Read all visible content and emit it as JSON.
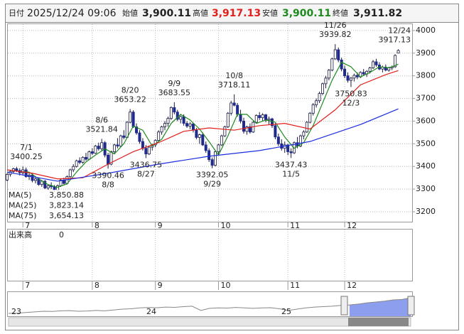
{
  "header": {
    "date_label": "日付",
    "date": "2025/12/24 09:06",
    "open_label": "始値",
    "open": "3,900.11",
    "high_label": "高値",
    "high": "3,917.13",
    "low_label": "安値",
    "low": "3,900.11",
    "close_label": "終値",
    "close": "3,911.82"
  },
  "chart_data": {
    "type": "candlestick",
    "ylim": [
      3156,
      4028
    ],
    "yticks": [
      3200,
      3300,
      3400,
      3500,
      3600,
      3700,
      3800,
      3900,
      4000
    ],
    "grid": true,
    "up_color": "#ffffff",
    "down_color": "#1f2a8c",
    "xticks": [
      {
        "value": 5,
        "label": "7"
      },
      {
        "value": 27,
        "label": "8"
      },
      {
        "value": 47,
        "label": "9"
      },
      {
        "value": 67,
        "label": "10"
      },
      {
        "value": 89,
        "label": "11"
      },
      {
        "value": 107,
        "label": "12"
      }
    ],
    "ohlc": [
      [
        3340,
        3370,
        3335,
        3365
      ],
      [
        3365,
        3385,
        3355,
        3378
      ],
      [
        3378,
        3395,
        3370,
        3390
      ],
      [
        3390,
        3398,
        3375,
        3382
      ],
      [
        3382,
        3392,
        3360,
        3372
      ],
      [
        3372,
        3400.25,
        3360,
        3385
      ],
      [
        3385,
        3395,
        3350,
        3355
      ],
      [
        3355,
        3370,
        3340,
        3362
      ],
      [
        3362,
        3368,
        3330,
        3338
      ],
      [
        3338,
        3350,
        3325,
        3345
      ],
      [
        3345,
        3352,
        3315,
        3320
      ],
      [
        3320,
        3340,
        3310,
        3335
      ],
      [
        3335,
        3340,
        3300,
        3305
      ],
      [
        3305,
        3320,
        3295,
        3315
      ],
      [
        3315,
        3330,
        3300,
        3310
      ],
      [
        3310,
        3318,
        3288,
        3295
      ],
      [
        3295,
        3320,
        3290,
        3315
      ],
      [
        3315,
        3345,
        3310,
        3340
      ],
      [
        3340,
        3350,
        3320,
        3325
      ],
      [
        3325,
        3360,
        3320,
        3355
      ],
      [
        3355,
        3390,
        3350,
        3385
      ],
      [
        3385,
        3410,
        3375,
        3400
      ],
      [
        3400,
        3430,
        3395,
        3425
      ],
      [
        3425,
        3440,
        3410,
        3418
      ],
      [
        3418,
        3445,
        3412,
        3440
      ],
      [
        3440,
        3460,
        3425,
        3432
      ],
      [
        3432,
        3470,
        3428,
        3465
      ],
      [
        3465,
        3480,
        3450,
        3458
      ],
      [
        3458,
        3495,
        3455,
        3490
      ],
      [
        3490,
        3505,
        3470,
        3478
      ],
      [
        3478,
        3521.84,
        3470,
        3505
      ],
      [
        3505,
        3512,
        3440,
        3450
      ],
      [
        3450,
        3460,
        3390.46,
        3410
      ],
      [
        3410,
        3470,
        3405,
        3465
      ],
      [
        3465,
        3500,
        3455,
        3495
      ],
      [
        3495,
        3525,
        3480,
        3490
      ],
      [
        3490,
        3540,
        3485,
        3535
      ],
      [
        3535,
        3560,
        3520,
        3528
      ],
      [
        3528,
        3600,
        3525,
        3595
      ],
      [
        3595,
        3653.22,
        3590,
        3640
      ],
      [
        3640,
        3648,
        3570,
        3575
      ],
      [
        3575,
        3590,
        3540,
        3548
      ],
      [
        3548,
        3560,
        3500,
        3510
      ],
      [
        3510,
        3525,
        3470,
        3480
      ],
      [
        3480,
        3495,
        3436.75,
        3455
      ],
      [
        3455,
        3490,
        3450,
        3485
      ],
      [
        3485,
        3500,
        3470,
        3495
      ],
      [
        3495,
        3520,
        3485,
        3515
      ],
      [
        3515,
        3560,
        3510,
        3552
      ],
      [
        3552,
        3580,
        3540,
        3575
      ],
      [
        3575,
        3600,
        3560,
        3590
      ],
      [
        3590,
        3620,
        3575,
        3612
      ],
      [
        3612,
        3665,
        3605,
        3660
      ],
      [
        3660,
        3683.55,
        3630,
        3640
      ],
      [
        3640,
        3650,
        3600,
        3608
      ],
      [
        3608,
        3625,
        3590,
        3620
      ],
      [
        3620,
        3630,
        3580,
        3590
      ],
      [
        3590,
        3600,
        3570,
        3578
      ],
      [
        3578,
        3595,
        3565,
        3588
      ],
      [
        3588,
        3592,
        3550,
        3560
      ],
      [
        3560,
        3570,
        3520,
        3528
      ],
      [
        3528,
        3545,
        3500,
        3540
      ],
      [
        3540,
        3550,
        3490,
        3495
      ],
      [
        3495,
        3510,
        3460,
        3470
      ],
      [
        3470,
        3480,
        3420,
        3430
      ],
      [
        3430,
        3440,
        3392.05,
        3405
      ],
      [
        3405,
        3470,
        3400,
        3465
      ],
      [
        3465,
        3500,
        3455,
        3495
      ],
      [
        3495,
        3540,
        3490,
        3535
      ],
      [
        3535,
        3580,
        3530,
        3575
      ],
      [
        3575,
        3640,
        3570,
        3635
      ],
      [
        3635,
        3690,
        3625,
        3680
      ],
      [
        3680,
        3718.11,
        3665,
        3670
      ],
      [
        3670,
        3680,
        3620,
        3630
      ],
      [
        3630,
        3650,
        3590,
        3600
      ],
      [
        3600,
        3615,
        3545,
        3555
      ],
      [
        3555,
        3580,
        3540,
        3575
      ],
      [
        3575,
        3590,
        3545,
        3552
      ],
      [
        3552,
        3600,
        3548,
        3595
      ],
      [
        3595,
        3630,
        3590,
        3625
      ],
      [
        3625,
        3640,
        3605,
        3615
      ],
      [
        3615,
        3635,
        3600,
        3628
      ],
      [
        3628,
        3632,
        3595,
        3605
      ],
      [
        3605,
        3620,
        3585,
        3610
      ],
      [
        3610,
        3615,
        3570,
        3580
      ],
      [
        3580,
        3590,
        3520,
        3530
      ],
      [
        3530,
        3545,
        3490,
        3500
      ],
      [
        3500,
        3520,
        3470,
        3480
      ],
      [
        3480,
        3510,
        3460,
        3495
      ],
      [
        3495,
        3500,
        3450,
        3465
      ],
      [
        3465,
        3480,
        3437.43,
        3460
      ],
      [
        3460,
        3510,
        3455,
        3505
      ],
      [
        3505,
        3530,
        3480,
        3490
      ],
      [
        3490,
        3540,
        3485,
        3535
      ],
      [
        3535,
        3560,
        3520,
        3552
      ],
      [
        3552,
        3600,
        3548,
        3595
      ],
      [
        3595,
        3640,
        3590,
        3635
      ],
      [
        3635,
        3680,
        3625,
        3672
      ],
      [
        3672,
        3700,
        3660,
        3690
      ],
      [
        3690,
        3730,
        3680,
        3722
      ],
      [
        3722,
        3770,
        3715,
        3765
      ],
      [
        3765,
        3800,
        3745,
        3790
      ],
      [
        3790,
        3830,
        3780,
        3825
      ],
      [
        3825,
        3880,
        3820,
        3875
      ],
      [
        3875,
        3939.82,
        3870,
        3915
      ],
      [
        3915,
        3925,
        3860,
        3870
      ],
      [
        3870,
        3880,
        3820,
        3830
      ],
      [
        3830,
        3845,
        3790,
        3800
      ],
      [
        3800,
        3815,
        3770,
        3780
      ],
      [
        3780,
        3795,
        3750.83,
        3790
      ],
      [
        3790,
        3810,
        3775,
        3802
      ],
      [
        3802,
        3815,
        3785,
        3795
      ],
      [
        3795,
        3820,
        3790,
        3815
      ],
      [
        3815,
        3830,
        3800,
        3808
      ],
      [
        3808,
        3825,
        3795,
        3820
      ],
      [
        3820,
        3840,
        3810,
        3835
      ],
      [
        3835,
        3870,
        3830,
        3862
      ],
      [
        3862,
        3875,
        3840,
        3848
      ],
      [
        3848,
        3860,
        3825,
        3830
      ],
      [
        3830,
        3845,
        3815,
        3838
      ],
      [
        3838,
        3850,
        3820,
        3825
      ],
      [
        3825,
        3840,
        3818,
        3835
      ],
      [
        3835,
        3845,
        3825,
        3840
      ],
      [
        3840,
        3895,
        3835,
        3890
      ],
      [
        3900.11,
        3917.13,
        3900.11,
        3911.82
      ]
    ],
    "series": [
      {
        "name": "MA(5)",
        "last_label": "3,850.88",
        "color": "#1e8a1e",
        "x": [
          4,
          7,
          10,
          13,
          16,
          19,
          22,
          25,
          28,
          31,
          34,
          37,
          40,
          43,
          46,
          49,
          52,
          55,
          58,
          61,
          64,
          67,
          70,
          73,
          76,
          79,
          82,
          85,
          88,
          91,
          94,
          97,
          100,
          103,
          106,
          109,
          112,
          115,
          118,
          121,
          124
        ],
        "values": [
          3377,
          3375,
          3345,
          3320,
          3308,
          3323,
          3375,
          3420,
          3450,
          3478,
          3455,
          3500,
          3578,
          3560,
          3490,
          3520,
          3590,
          3630,
          3605,
          3565,
          3510,
          3450,
          3535,
          3630,
          3630,
          3590,
          3605,
          3595,
          3530,
          3480,
          3505,
          3580,
          3680,
          3780,
          3860,
          3840,
          3795,
          3815,
          3840,
          3835,
          3850.88
        ]
      },
      {
        "name": "MA(25)",
        "last_label": "3,823.14",
        "color": "#e0201c",
        "x": [
          0,
          8,
          16,
          24,
          32,
          40,
          48,
          56,
          64,
          72,
          80,
          88,
          96,
          104,
          112,
          120,
          124
        ],
        "values": [
          3385,
          3370,
          3345,
          3350,
          3410,
          3465,
          3505,
          3555,
          3570,
          3560,
          3580,
          3590,
          3565,
          3650,
          3760,
          3805,
          3823.14
        ]
      },
      {
        "name": "MA(75)",
        "last_label": "3,654.13",
        "color": "#1c2ee0",
        "x": [
          0,
          16,
          32,
          48,
          64,
          80,
          96,
          112,
          124
        ],
        "values": [
          3375,
          3335,
          3370,
          3410,
          3445,
          3470,
          3510,
          3585,
          3654.13
        ]
      }
    ],
    "annotations": [
      {
        "date": "7/1",
        "value": 3400.25
      },
      {
        "date": "8/6",
        "value": 3521.84
      },
      {
        "date": "8/8",
        "value": 3390.46
      },
      {
        "date": "8/20",
        "value": 3653.22
      },
      {
        "date": "8/27",
        "value": 3436.75
      },
      {
        "date": "9/9",
        "value": 3683.55
      },
      {
        "date": "9/29",
        "value": 3392.05
      },
      {
        "date": "10/8",
        "value": 3718.11
      },
      {
        "date": "11/5",
        "value": 3437.43
      },
      {
        "date": "11/26",
        "value": 3939.82
      },
      {
        "date": "12/3",
        "value": 3750.83
      },
      {
        "date": "12/24",
        "value": 3917.13
      }
    ],
    "volume": {
      "title": "出来高",
      "last": 0
    },
    "navigator": {
      "labels": [
        "23",
        "24",
        "25"
      ],
      "values": [
        2050,
        2080,
        2150,
        2230,
        2300,
        2280,
        2350,
        2380,
        2300,
        2330,
        2400,
        2360,
        2450,
        2550,
        2600,
        2700,
        2750,
        2720,
        2800,
        2760,
        2850,
        2900,
        2400,
        2650,
        2700,
        2680,
        2750,
        2700,
        2650,
        2700,
        2720,
        2600,
        2400,
        2550,
        2700,
        2800,
        2850,
        2900,
        3000,
        3050,
        3150,
        3300,
        3400,
        3500,
        3650,
        3700,
        3900
      ]
    }
  }
}
